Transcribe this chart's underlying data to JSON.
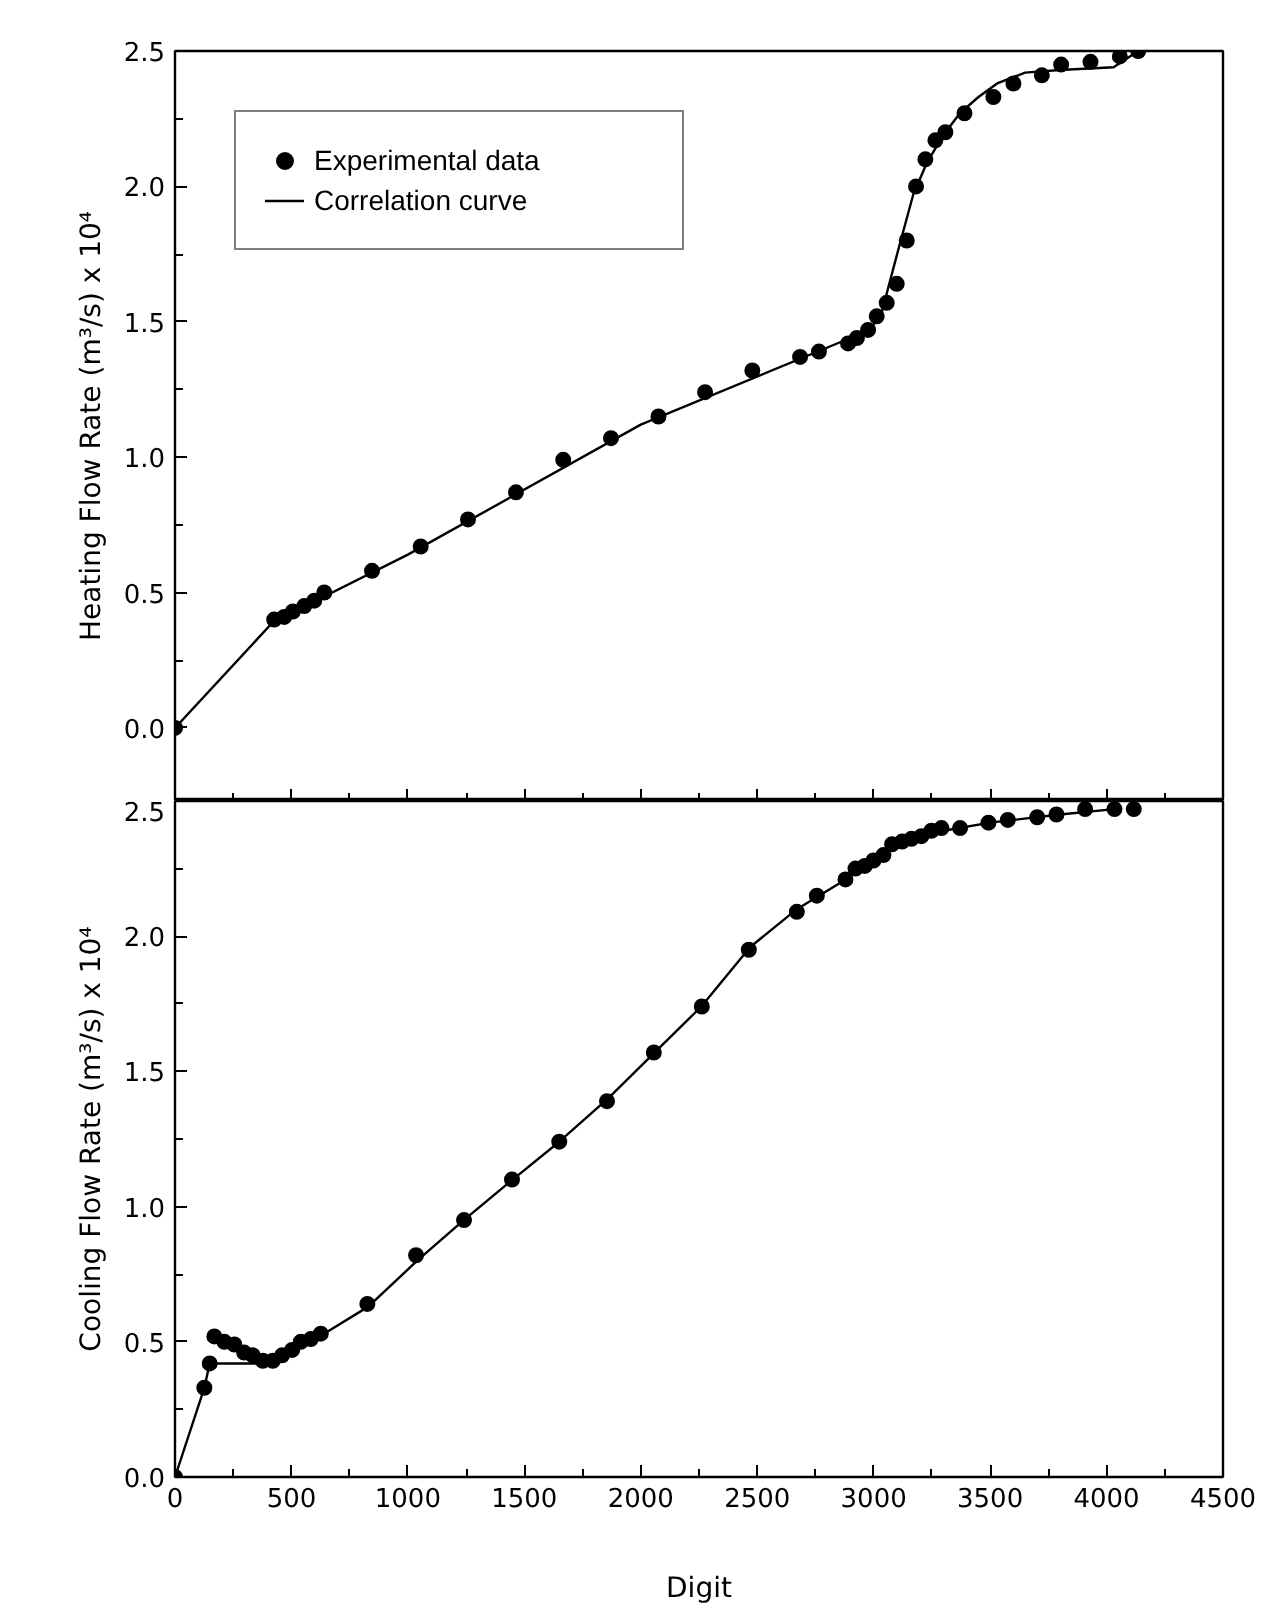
{
  "chart_data": [
    {
      "type": "scatter",
      "ylabel": "Heating Flow Rate (m³/s) x 10⁴",
      "xlim": [
        0,
        4500
      ],
      "ylim": [
        -0.27,
        2.5
      ],
      "xticks": [
        0,
        500,
        1000,
        1500,
        2000,
        2500,
        3000,
        3500,
        4000,
        4500
      ],
      "yticks": [
        {
          "value": 0,
          "label": "0.0"
        },
        {
          "value": 0.5,
          "label": "0.5"
        },
        {
          "value": 1,
          "label": "1.0"
        },
        {
          "value": 1.5,
          "label": "1.5"
        },
        {
          "value": 2,
          "label": "2.0"
        },
        {
          "value": 2.5,
          "label": "2.5"
        }
      ],
      "tick_labels": "y",
      "legend": "top left",
      "grid": false,
      "series": [
        {
          "name": "Experimental data",
          "marker": "circle",
          "color": "#000000",
          "x": [
            0,
            426,
            469,
            506,
            555,
            598,
            641,
            846,
            1055,
            1258,
            1464,
            1667,
            1872,
            2076,
            2276,
            2479,
            2684,
            2765,
            2890,
            2928,
            2976,
            3013,
            3056,
            3099,
            3142,
            3182,
            3222,
            3265,
            3308,
            3390,
            3514,
            3600,
            3722,
            3805,
            3931,
            4057,
            4136
          ],
          "values": [
            0,
            0.4,
            0.41,
            0.43,
            0.45,
            0.47,
            0.5,
            0.58,
            0.67,
            0.77,
            0.87,
            0.99,
            1.07,
            1.15,
            1.24,
            1.32,
            1.37,
            1.39,
            1.42,
            1.44,
            1.47,
            1.52,
            1.57,
            1.64,
            1.8,
            2.0,
            2.1,
            2.17,
            2.2,
            2.27,
            2.33,
            2.38,
            2.41,
            2.45,
            2.46,
            2.48,
            2.5
          ]
        },
        {
          "name": "Correlation curve",
          "type": "line",
          "line_style": "solid",
          "color": "#000000",
          "x": [
            0,
            420,
            1000,
            2000,
            2900,
            2990,
            3030,
            3110,
            3170,
            3230,
            3300,
            3370,
            3450,
            3530,
            3650,
            3800,
            4030,
            4136
          ],
          "values": [
            0,
            0.39,
            0.64,
            1.12,
            1.44,
            1.48,
            1.52,
            1.78,
            1.97,
            2.09,
            2.19,
            2.27,
            2.33,
            2.38,
            2.42,
            2.43,
            2.44,
            2.5
          ]
        }
      ]
    },
    {
      "type": "scatter",
      "xlabel": "Digit",
      "ylabel": "Cooling Flow Rate (m³/s) x 10⁴",
      "xlim": [
        0,
        4500
      ],
      "ylim": [
        0,
        2.5
      ],
      "xticks": [
        0,
        500,
        1000,
        1500,
        2000,
        2500,
        3000,
        3500,
        4000,
        4500
      ],
      "yticks": [
        {
          "value": 0,
          "label": "0.0"
        },
        {
          "value": 0.5,
          "label": "0.5"
        },
        {
          "value": 1,
          "label": "1.0"
        },
        {
          "value": 1.5,
          "label": "1.5"
        },
        {
          "value": 2,
          "label": "2.0"
        },
        {
          "value": 2.5,
          "label": "2.5"
        }
      ],
      "grid": false,
      "series": [
        {
          "marker": "circle",
          "color": "#000000",
          "x": [
            0,
            126,
            149,
            169,
            212,
            255,
            297,
            334,
            377,
            420,
            460,
            503,
            540,
            583,
            626,
            826,
            1035,
            1241,
            1447,
            1650,
            1855,
            2056,
            2262,
            2464,
            2670,
            2756,
            2879,
            2922,
            2962,
            2999,
            3042,
            3079,
            3122,
            3162,
            3205,
            3248,
            3291,
            3371,
            3493,
            3576,
            3702,
            3785,
            3908,
            4034,
            4117
          ],
          "values": [
            0,
            0.33,
            0.42,
            0.52,
            0.5,
            0.49,
            0.46,
            0.45,
            0.43,
            0.43,
            0.45,
            0.47,
            0.5,
            0.51,
            0.53,
            0.64,
            0.82,
            0.95,
            1.1,
            1.24,
            1.39,
            1.57,
            1.74,
            1.95,
            2.09,
            2.15,
            2.21,
            2.25,
            2.26,
            2.28,
            2.3,
            2.34,
            2.35,
            2.36,
            2.37,
            2.39,
            2.4,
            2.4,
            2.42,
            2.43,
            2.44,
            2.45,
            2.47,
            2.47,
            2.47
          ]
        },
        {
          "type": "line",
          "line_style": "solid",
          "color": "#000000",
          "x": [
            0,
            126,
            149,
            380,
            500,
            640,
            830,
            1040,
            1240,
            1450,
            1650,
            1860,
            2060,
            2260,
            2470,
            2670,
            2880,
            3080,
            3300,
            3500,
            3800,
            4034
          ],
          "values": [
            0,
            0.33,
            0.42,
            0.42,
            0.46,
            0.53,
            0.63,
            0.8,
            0.95,
            1.1,
            1.24,
            1.4,
            1.57,
            1.74,
            1.96,
            2.1,
            2.21,
            2.33,
            2.39,
            2.42,
            2.45,
            2.47
          ]
        }
      ]
    }
  ]
}
